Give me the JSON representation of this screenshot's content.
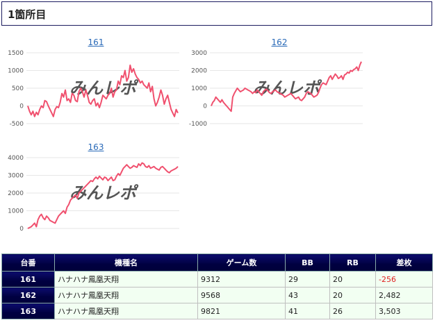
{
  "header": {
    "title": "1箇所目"
  },
  "watermark": "みんレポ",
  "colors": {
    "line": "#f0506e",
    "grid": "#e6e6e6",
    "link": "#2a6ab8",
    "header_bg": "#00003a",
    "negative": "#e02020"
  },
  "chart_data": [
    {
      "type": "line",
      "title": "161",
      "ylim": [
        -500,
        1500
      ],
      "yticks": [
        "-500",
        "0",
        "500",
        "1000",
        "1500"
      ],
      "values": [
        0,
        -150,
        -250,
        -150,
        -300,
        -180,
        -250,
        -100,
        0,
        -50,
        150,
        120,
        0,
        -100,
        -200,
        -300,
        -100,
        -20,
        -50,
        100,
        350,
        250,
        450,
        150,
        200,
        100,
        350,
        300,
        150,
        120,
        400,
        500,
        400,
        250,
        450,
        300,
        100,
        50,
        150,
        200,
        0,
        80,
        -50,
        100,
        300,
        250,
        200,
        300,
        350,
        500,
        250,
        400,
        450,
        700,
        600,
        850,
        800,
        1000,
        700,
        800,
        1150,
        950,
        1050,
        900,
        800,
        750,
        650,
        700,
        600,
        550,
        500,
        650,
        400,
        550,
        200,
        0,
        100,
        250,
        450,
        300,
        50,
        200,
        300,
        100,
        -100,
        -200,
        -300,
        -100,
        -200
      ]
    },
    {
      "type": "line",
      "title": "162",
      "ylim": [
        -1000,
        3000
      ],
      "yticks": [
        "-1000",
        "0",
        "1000",
        "2000",
        "3000"
      ],
      "values": [
        0,
        200,
        300,
        500,
        400,
        300,
        200,
        350,
        200,
        100,
        0,
        -100,
        -200,
        -300,
        500,
        700,
        850,
        1000,
        900,
        800,
        850,
        900,
        1000,
        950,
        900,
        850,
        800,
        700,
        800,
        750,
        900,
        800,
        700,
        600,
        800,
        900,
        950,
        850,
        750,
        700,
        800,
        850,
        900,
        800,
        750,
        700,
        650,
        600,
        500,
        550,
        600,
        650,
        700,
        600,
        500,
        400,
        450,
        500,
        350,
        300,
        400,
        500,
        700,
        800,
        750,
        700,
        600,
        500,
        550,
        600,
        750,
        1000,
        1200,
        1300,
        1250,
        1200,
        1400,
        1600,
        1700,
        1500,
        1650,
        1800,
        1700,
        1550,
        1600,
        1700,
        1500,
        1750,
        1800,
        1900,
        1850,
        2000,
        1950,
        2050,
        2100,
        2200,
        2000,
        2300,
        2500
      ]
    },
    {
      "type": "line",
      "title": "163",
      "ylim": [
        0,
        4000
      ],
      "yticks": [
        "0",
        "1000",
        "2000",
        "3000",
        "4000"
      ],
      "values": [
        0,
        50,
        100,
        200,
        300,
        100,
        500,
        700,
        800,
        600,
        500,
        700,
        600,
        450,
        400,
        350,
        300,
        500,
        700,
        800,
        900,
        1000,
        850,
        1200,
        1350,
        1600,
        1700,
        1800,
        1900,
        1700,
        2000,
        2100,
        2200,
        2300,
        2400,
        2500,
        2600,
        2700,
        2650,
        2800,
        2900,
        2800,
        2950,
        2850,
        2750,
        2900,
        2850,
        2700,
        2800,
        2900,
        2700,
        2750,
        2950,
        3100,
        3000,
        3200,
        3400,
        3500,
        3600,
        3500,
        3400,
        3450,
        3550,
        3500,
        3450,
        3650,
        3550,
        3700,
        3650,
        3500,
        3450,
        3550,
        3400,
        3450,
        3500,
        3400,
        3350,
        3300,
        3450,
        3500,
        3400,
        3300,
        3200,
        3150,
        3250,
        3300,
        3350,
        3400,
        3500
      ]
    }
  ],
  "table": {
    "headers": [
      "台番",
      "機種名",
      "ゲーム数",
      "BB",
      "RB",
      "差枚"
    ],
    "rows": [
      {
        "num": "161",
        "name": "ハナハナ鳳凰天翔",
        "games": "9312",
        "bb": "29",
        "rb": "20",
        "diff": "-256"
      },
      {
        "num": "162",
        "name": "ハナハナ鳳凰天翔",
        "games": "9568",
        "bb": "43",
        "rb": "20",
        "diff": "2,482"
      },
      {
        "num": "163",
        "name": "ハナハナ鳳凰天翔",
        "games": "9821",
        "bb": "41",
        "rb": "26",
        "diff": "3,503"
      }
    ]
  }
}
